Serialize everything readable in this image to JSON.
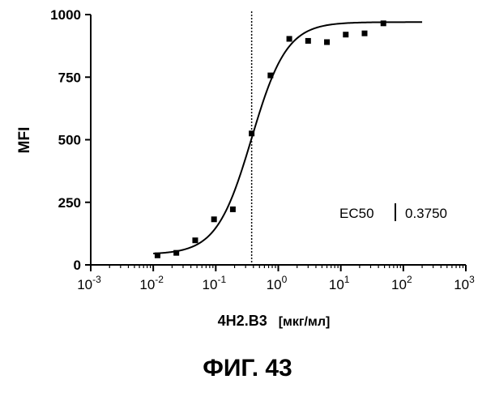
{
  "figure_label": "ФИГ. 43",
  "chart_data": {
    "type": "scatter",
    "ylabel": "MFI",
    "xlabel_main": "4H2.B3",
    "xlabel_unit": "[мкг/мл]",
    "x_scale": "log",
    "xlim": [
      0.001,
      1000
    ],
    "ylim": [
      0,
      1000
    ],
    "x_ticks": [
      {
        "base": "10",
        "exp": "-3",
        "value": 0.001
      },
      {
        "base": "10",
        "exp": "-2",
        "value": 0.01
      },
      {
        "base": "10",
        "exp": "-1",
        "value": 0.1
      },
      {
        "base": "10",
        "exp": "0",
        "value": 1
      },
      {
        "base": "10",
        "exp": "1",
        "value": 10
      },
      {
        "base": "10",
        "exp": "2",
        "value": 100
      },
      {
        "base": "10",
        "exp": "3",
        "value": 1000
      }
    ],
    "y_ticks": [
      "0",
      "250",
      "500",
      "750",
      "1000"
    ],
    "y_tick_values": [
      0,
      250,
      500,
      750,
      1000
    ],
    "points": [
      {
        "x": 0.0117,
        "y": 38
      },
      {
        "x": 0.0234,
        "y": 48
      },
      {
        "x": 0.0469,
        "y": 98
      },
      {
        "x": 0.0938,
        "y": 182
      },
      {
        "x": 0.1875,
        "y": 222
      },
      {
        "x": 0.375,
        "y": 525
      },
      {
        "x": 0.75,
        "y": 757
      },
      {
        "x": 1.5,
        "y": 903
      },
      {
        "x": 3.0,
        "y": 895
      },
      {
        "x": 6.0,
        "y": 890
      },
      {
        "x": 12.0,
        "y": 920
      },
      {
        "x": 24.0,
        "y": 925
      },
      {
        "x": 48.0,
        "y": 965
      }
    ],
    "fit_curve": {
      "bottom": 42,
      "top": 970,
      "ec50": 0.375,
      "hill": 1.55,
      "x_range": [
        0.01,
        200
      ]
    },
    "ec50_line": 0.375,
    "annotation": {
      "label": "EC50",
      "value": "0.3750"
    },
    "grid": false,
    "legend": "none"
  }
}
